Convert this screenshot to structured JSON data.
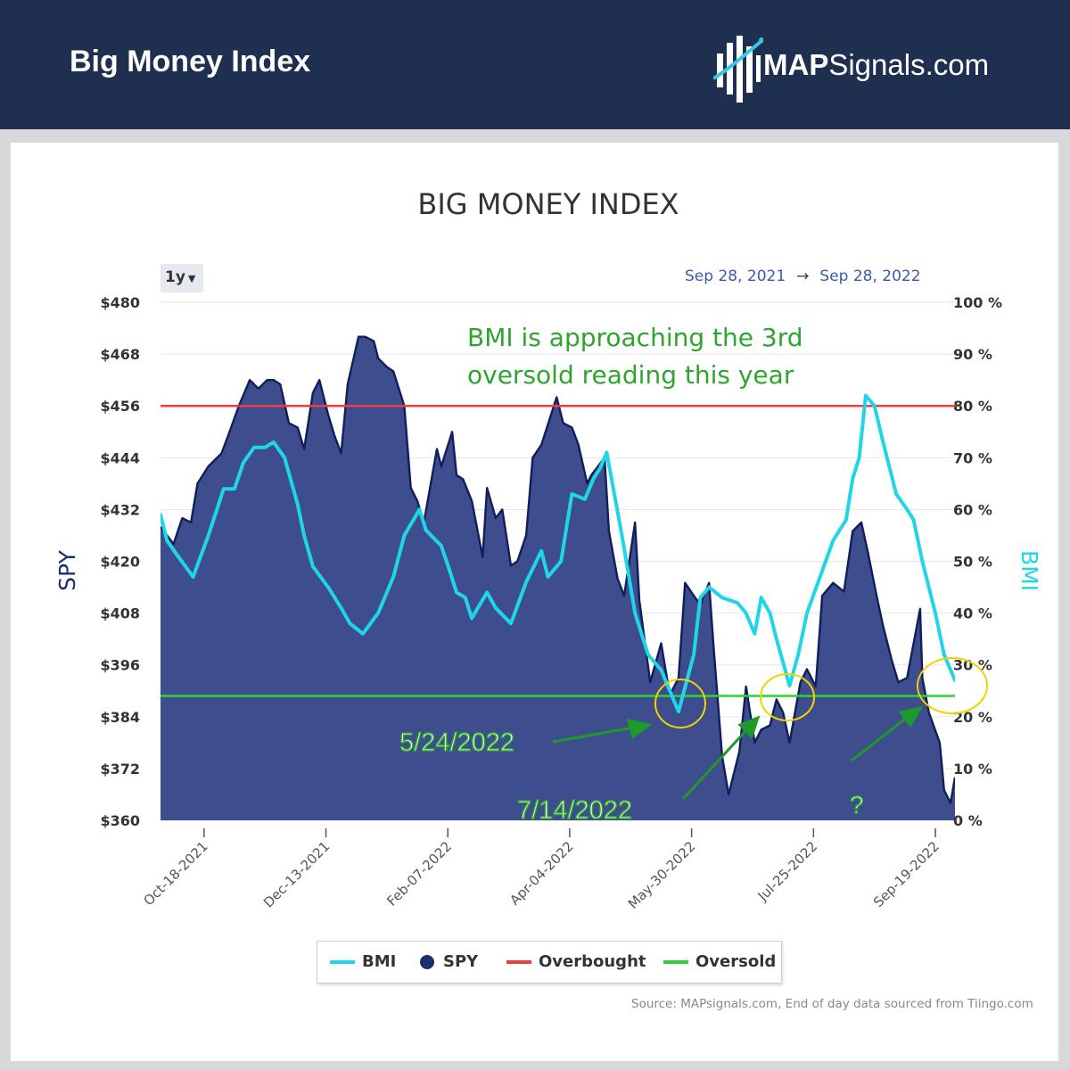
{
  "header": {
    "title": "Big Money Index",
    "logo_bold": "MAP",
    "logo_rest": "Signals.com"
  },
  "chart_data": {
    "type": "area",
    "title": "BIG MONEY INDEX",
    "range_selector": "1y",
    "range_start": "Sep 28, 2021",
    "range_arrow": "→",
    "range_end": "Sep 28, 2022",
    "xlabel": "",
    "ylabel_left": "SPY",
    "ylabel_right": "BMI",
    "ylim_left": [
      360,
      480
    ],
    "ylim_right": [
      0,
      100
    ],
    "yticks_left": [
      "$480",
      "$468",
      "$456",
      "$444",
      "$432",
      "$420",
      "$408",
      "$396",
      "$384",
      "$372",
      "$360"
    ],
    "yticks_right": [
      "100 %",
      "90 %",
      "80 %",
      "70 %",
      "60 %",
      "50 %",
      "40 %",
      "30 %",
      "20 %",
      "10 %",
      "0 %"
    ],
    "xticks": [
      "Oct-18-2021",
      "Dec-13-2021",
      "Feb-07-2022",
      "Apr-04-2022",
      "May-30-2022",
      "Jul-25-2022",
      "Sep-19-2022"
    ],
    "grid": true,
    "thresholds": {
      "overbought": 80,
      "oversold": 24
    },
    "series": [
      {
        "name": "SPY",
        "axis": "left",
        "color": "#1b2f6e",
        "points": [
          [
            "2021-09-28",
            428
          ],
          [
            "2021-10-01",
            426
          ],
          [
            "2021-10-04",
            424
          ],
          [
            "2021-10-08",
            430
          ],
          [
            "2021-10-12",
            429
          ],
          [
            "2021-10-15",
            438
          ],
          [
            "2021-10-20",
            442
          ],
          [
            "2021-10-26",
            445
          ],
          [
            "2021-10-29",
            449
          ],
          [
            "2021-11-03",
            456
          ],
          [
            "2021-11-08",
            462
          ],
          [
            "2021-11-12",
            460
          ],
          [
            "2021-11-16",
            462
          ],
          [
            "2021-11-19",
            462
          ],
          [
            "2021-11-22",
            461
          ],
          [
            "2021-11-26",
            452
          ],
          [
            "2021-11-30",
            451
          ],
          [
            "2021-12-03",
            446
          ],
          [
            "2021-12-07",
            459
          ],
          [
            "2021-12-10",
            462
          ],
          [
            "2021-12-14",
            454
          ],
          [
            "2021-12-17",
            449
          ],
          [
            "2021-12-20",
            445
          ],
          [
            "2021-12-23",
            461
          ],
          [
            "2021-12-28",
            472
          ],
          [
            "2021-12-31",
            472
          ],
          [
            "2022-01-04",
            471
          ],
          [
            "2022-01-06",
            467
          ],
          [
            "2022-01-10",
            465
          ],
          [
            "2022-01-13",
            464
          ],
          [
            "2022-01-18",
            456
          ],
          [
            "2022-01-21",
            437
          ],
          [
            "2022-01-24",
            434
          ],
          [
            "2022-01-27",
            429
          ],
          [
            "2022-02-02",
            446
          ],
          [
            "2022-02-04",
            442
          ],
          [
            "2022-02-09",
            450
          ],
          [
            "2022-02-11",
            440
          ],
          [
            "2022-02-14",
            439
          ],
          [
            "2022-02-18",
            434
          ],
          [
            "2022-02-23",
            421
          ],
          [
            "2022-02-25",
            437
          ],
          [
            "2022-03-01",
            430
          ],
          [
            "2022-03-04",
            432
          ],
          [
            "2022-03-08",
            419
          ],
          [
            "2022-03-11",
            420
          ],
          [
            "2022-03-15",
            426
          ],
          [
            "2022-03-18",
            444
          ],
          [
            "2022-03-22",
            447
          ],
          [
            "2022-03-29",
            458
          ],
          [
            "2022-04-01",
            452
          ],
          [
            "2022-04-05",
            451
          ],
          [
            "2022-04-08",
            447
          ],
          [
            "2022-04-12",
            438
          ],
          [
            "2022-04-14",
            440
          ],
          [
            "2022-04-20",
            444
          ],
          [
            "2022-04-22",
            427
          ],
          [
            "2022-04-26",
            416
          ],
          [
            "2022-04-29",
            412
          ],
          [
            "2022-05-04",
            429
          ],
          [
            "2022-05-06",
            411
          ],
          [
            "2022-05-11",
            392
          ],
          [
            "2022-05-16",
            401
          ],
          [
            "2022-05-20",
            389
          ],
          [
            "2022-05-24",
            393
          ],
          [
            "2022-05-27",
            415
          ],
          [
            "2022-05-31",
            412
          ],
          [
            "2022-06-03",
            410
          ],
          [
            "2022-06-07",
            415
          ],
          [
            "2022-06-09",
            401
          ],
          [
            "2022-06-13",
            375
          ],
          [
            "2022-06-16",
            366
          ],
          [
            "2022-06-21",
            376
          ],
          [
            "2022-06-24",
            391
          ],
          [
            "2022-06-28",
            378
          ],
          [
            "2022-07-01",
            381
          ],
          [
            "2022-07-05",
            382
          ],
          [
            "2022-07-08",
            388
          ],
          [
            "2022-07-11",
            385
          ],
          [
            "2022-07-14",
            378
          ],
          [
            "2022-07-19",
            392
          ],
          [
            "2022-07-22",
            395
          ],
          [
            "2022-07-26",
            391
          ],
          [
            "2022-07-29",
            412
          ],
          [
            "2022-08-03",
            415
          ],
          [
            "2022-08-08",
            413
          ],
          [
            "2022-08-12",
            427
          ],
          [
            "2022-08-16",
            429
          ],
          [
            "2022-08-19",
            422
          ],
          [
            "2022-08-23",
            412
          ],
          [
            "2022-08-26",
            405
          ],
          [
            "2022-08-30",
            397
          ],
          [
            "2022-09-02",
            392
          ],
          [
            "2022-09-06",
            393
          ],
          [
            "2022-09-12",
            409
          ],
          [
            "2022-09-13",
            393
          ],
          [
            "2022-09-16",
            385
          ],
          [
            "2022-09-21",
            378
          ],
          [
            "2022-09-23",
            367
          ],
          [
            "2022-09-26",
            364
          ],
          [
            "2022-09-28",
            370
          ]
        ]
      },
      {
        "name": "BMI",
        "axis": "right",
        "color": "#1fd6e8",
        "points": [
          [
            "2021-09-28",
            59
          ],
          [
            "2021-10-01",
            54
          ],
          [
            "2021-10-06",
            51
          ],
          [
            "2021-10-13",
            47
          ],
          [
            "2021-10-20",
            55
          ],
          [
            "2021-10-27",
            64
          ],
          [
            "2021-11-01",
            64
          ],
          [
            "2021-11-05",
            69
          ],
          [
            "2021-11-10",
            72
          ],
          [
            "2021-11-15",
            72
          ],
          [
            "2021-11-19",
            73
          ],
          [
            "2021-11-24",
            70
          ],
          [
            "2021-11-30",
            61
          ],
          [
            "2021-12-03",
            55
          ],
          [
            "2021-12-07",
            49
          ],
          [
            "2021-12-14",
            45
          ],
          [
            "2021-12-20",
            41
          ],
          [
            "2021-12-24",
            38
          ],
          [
            "2021-12-30",
            36
          ],
          [
            "2022-01-06",
            40
          ],
          [
            "2022-01-13",
            47
          ],
          [
            "2022-01-18",
            55
          ],
          [
            "2022-01-25",
            60
          ],
          [
            "2022-01-28",
            56
          ],
          [
            "2022-02-04",
            53
          ],
          [
            "2022-02-08",
            48
          ],
          [
            "2022-02-11",
            44
          ],
          [
            "2022-02-15",
            43
          ],
          [
            "2022-02-18",
            39
          ],
          [
            "2022-02-25",
            44
          ],
          [
            "2022-03-01",
            41
          ],
          [
            "2022-03-08",
            38
          ],
          [
            "2022-03-15",
            46
          ],
          [
            "2022-03-22",
            52
          ],
          [
            "2022-03-25",
            47
          ],
          [
            "2022-03-31",
            50
          ],
          [
            "2022-04-05",
            63
          ],
          [
            "2022-04-11",
            62
          ],
          [
            "2022-04-15",
            66
          ],
          [
            "2022-04-18",
            68
          ],
          [
            "2022-04-21",
            71
          ],
          [
            "2022-04-28",
            55
          ],
          [
            "2022-05-04",
            40
          ],
          [
            "2022-05-10",
            32
          ],
          [
            "2022-05-16",
            29
          ],
          [
            "2022-05-20",
            25
          ],
          [
            "2022-05-24",
            21
          ],
          [
            "2022-05-31",
            32
          ],
          [
            "2022-06-03",
            43
          ],
          [
            "2022-06-07",
            45
          ],
          [
            "2022-06-13",
            43
          ],
          [
            "2022-06-20",
            42
          ],
          [
            "2022-06-24",
            40
          ],
          [
            "2022-06-28",
            36
          ],
          [
            "2022-07-01",
            43
          ],
          [
            "2022-07-05",
            40
          ],
          [
            "2022-07-08",
            35
          ],
          [
            "2022-07-14",
            26
          ],
          [
            "2022-07-18",
            32
          ],
          [
            "2022-07-22",
            40
          ],
          [
            "2022-07-28",
            47
          ],
          [
            "2022-08-03",
            54
          ],
          [
            "2022-08-09",
            58
          ],
          [
            "2022-08-12",
            66
          ],
          [
            "2022-08-15",
            70
          ],
          [
            "2022-08-18",
            82
          ],
          [
            "2022-08-22",
            80
          ],
          [
            "2022-08-26",
            73
          ],
          [
            "2022-09-01",
            63
          ],
          [
            "2022-09-06",
            60
          ],
          [
            "2022-09-09",
            58
          ],
          [
            "2022-09-13",
            50
          ],
          [
            "2022-09-19",
            40
          ],
          [
            "2022-09-23",
            32
          ],
          [
            "2022-09-28",
            27
          ]
        ]
      },
      {
        "name": "Overbought",
        "color": "#ee3f3f",
        "value": 80
      },
      {
        "name": "Oversold",
        "color": "#2fd235",
        "value": 24
      }
    ],
    "annotations": [
      {
        "text": "BMI is approaching the 3rd",
        "color": "#2ea52e"
      },
      {
        "text": "oversold reading this year",
        "color": "#2ea52e"
      },
      {
        "text": "5/24/2022",
        "color": "#2ea52e"
      },
      {
        "text": "7/14/2022",
        "color": "#2ea52e"
      },
      {
        "text": "?",
        "color": "#2ea52e"
      }
    ],
    "source": "Source: MAPsignals.com, End of day data sourced from Tiingo.com"
  }
}
